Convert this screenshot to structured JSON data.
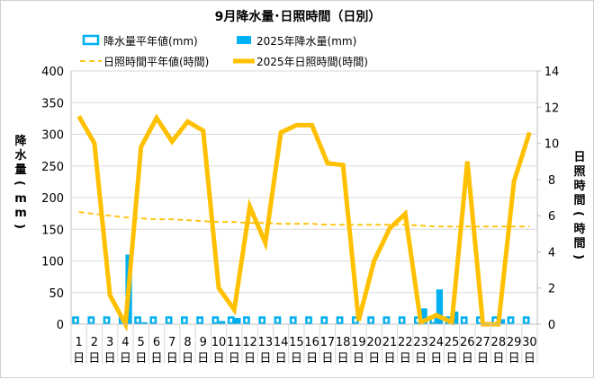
{
  "chart_data": {
    "type": "bar+line",
    "title": "9月降水量･日照時間（日別）",
    "ylabel_left": "降水量(mm)",
    "ylabel_right": "日照時間(時間)",
    "ylim_left": [
      0,
      400
    ],
    "ylim_right": [
      0,
      14
    ],
    "yticks_left": [
      0,
      50,
      100,
      150,
      200,
      250,
      300,
      350,
      400
    ],
    "yticks_right": [
      0,
      2,
      4,
      6,
      8,
      10,
      12,
      14
    ],
    "grid": true,
    "legend_position": "top",
    "categories": [
      "1",
      "2",
      "3",
      "4",
      "5",
      "6",
      "7",
      "8",
      "9",
      "10",
      "11",
      "12",
      "13",
      "14",
      "15",
      "16",
      "17",
      "18",
      "19",
      "20",
      "21",
      "22",
      "23",
      "24",
      "25",
      "26",
      "27",
      "28",
      "29",
      "30"
    ],
    "category_suffix": "日",
    "series": [
      {
        "name": "降水量平年値(mm)",
        "type": "bar-outline",
        "axis": "left",
        "color": "#00B0F0",
        "values": [
          12,
          12,
          12,
          12,
          12,
          12,
          12,
          12,
          12,
          12,
          12,
          12,
          12,
          12,
          12,
          12,
          12,
          12,
          12,
          12,
          12,
          12,
          12,
          12,
          12,
          12,
          12,
          12,
          12,
          12
        ]
      },
      {
        "name": "2025年降水量(mm)",
        "type": "bar",
        "axis": "left",
        "color": "#00B0F0",
        "values": [
          0,
          0,
          0,
          110,
          3,
          0,
          0,
          0,
          0,
          5,
          10,
          0,
          0,
          0,
          0,
          0,
          0,
          0,
          0,
          0,
          0,
          0,
          25,
          55,
          20,
          0,
          0,
          8,
          0,
          0
        ]
      },
      {
        "name": "日照時間平年値(時間)",
        "type": "line-dashed",
        "axis": "right",
        "color": "#FFC000",
        "values": [
          6.2,
          6.1,
          6.0,
          5.9,
          5.85,
          5.8,
          5.8,
          5.75,
          5.7,
          5.65,
          5.65,
          5.6,
          5.6,
          5.55,
          5.55,
          5.55,
          5.5,
          5.5,
          5.5,
          5.5,
          5.5,
          5.5,
          5.45,
          5.4,
          5.4,
          5.4,
          5.4,
          5.4,
          5.4,
          5.4
        ]
      },
      {
        "name": "2025年日照時間(時間)",
        "type": "line",
        "axis": "right",
        "color": "#FFC000",
        "values": [
          11.5,
          10.0,
          1.6,
          0,
          9.8,
          11.4,
          10.1,
          11.2,
          10.7,
          2.0,
          0.8,
          6.5,
          4.5,
          10.6,
          11.0,
          11.0,
          8.9,
          8.8,
          0.2,
          3.5,
          5.3,
          6.1,
          0.1,
          0.5,
          0.1,
          9.0,
          0,
          0,
          7.9,
          10.6
        ]
      }
    ]
  }
}
